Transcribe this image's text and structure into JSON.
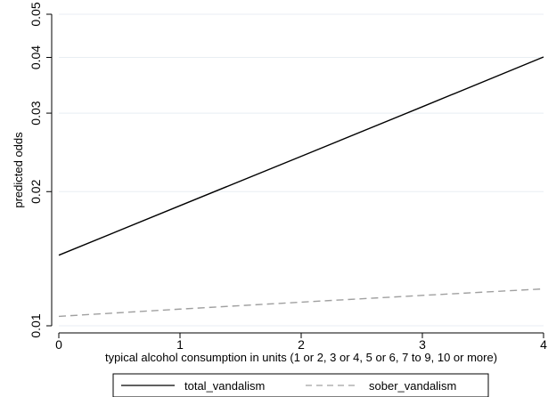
{
  "chart_data": {
    "type": "line",
    "xlabel": "typical alcohol consumption in units (1 or 2, 3 or 4, 5 or 6, 7 to 9, 10 or more)",
    "ylabel": "predicted odds",
    "xlim": [
      0,
      4
    ],
    "ylim": [
      0.01,
      0.05
    ],
    "yscale": "log",
    "x_ticks": [
      0,
      1,
      2,
      3,
      4
    ],
    "y_ticks": [
      0.01,
      0.02,
      0.03,
      0.04,
      0.05
    ],
    "x_tick_labels": [
      "0",
      "1",
      "2",
      "3",
      "4"
    ],
    "y_tick_labels": [
      "0.01",
      "0.02",
      "0.03",
      "0.04",
      "0.05"
    ],
    "grid": "horizontal",
    "legend_position": "bottom",
    "series": [
      {
        "name": "total_vandalism",
        "style": "solid",
        "color": "#000000",
        "x": [
          0,
          1,
          2,
          3,
          4
        ],
        "y": [
          0.0144,
          0.0186,
          0.024,
          0.031,
          0.0401
        ]
      },
      {
        "name": "sober_vandalism",
        "style": "dashed",
        "color": "#a0a0a0",
        "x": [
          0,
          1,
          2,
          3,
          4
        ],
        "y": [
          0.0105,
          0.0109,
          0.0113,
          0.0117,
          0.0121
        ]
      }
    ]
  }
}
